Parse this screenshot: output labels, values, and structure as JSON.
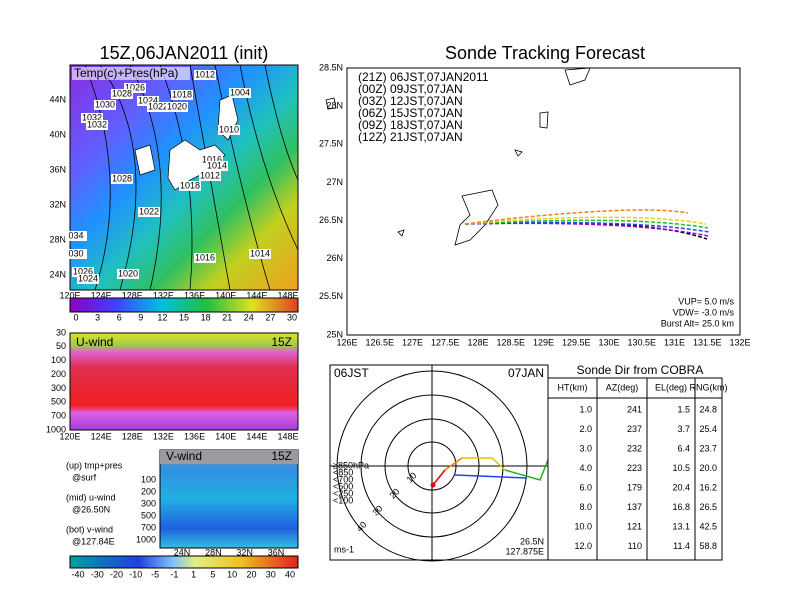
{
  "left": {
    "title": "15Z,06JAN2011 (init)",
    "subtitle": "Temp(c)+Pres(hPa)",
    "lat_ticks": [
      "44N",
      "40N",
      "36N",
      "32N",
      "28N",
      "24N"
    ],
    "lon_ticks": [
      "120E",
      "124E",
      "128E",
      "132E",
      "136E",
      "140E",
      "144E",
      "148E"
    ],
    "isobar_labels": [
      "1012",
      "1026",
      "1028",
      "1018",
      "1004",
      "1024",
      "1022",
      "1020",
      "1030",
      "1032",
      "1032",
      "1010",
      "1016",
      "1014",
      "1012",
      "1028",
      "1018",
      "1022",
      "1016",
      "1014",
      "1020",
      "1026",
      "1024",
      "034",
      "030"
    ],
    "temp_colorbar": [
      "0",
      "3",
      "6",
      "9",
      "12",
      "15",
      "18",
      "21",
      "24",
      "27",
      "30"
    ]
  },
  "uwind": {
    "label": "U-wind",
    "time": "15Z",
    "p_ticks": [
      "30",
      "50",
      "100",
      "200",
      "300",
      "500",
      "700",
      "1000"
    ],
    "lon_ticks": [
      "120E",
      "124E",
      "128E",
      "132E",
      "136E",
      "140E",
      "144E",
      "148E"
    ]
  },
  "vwind": {
    "label": "V-wind",
    "time": "15Z",
    "p_ticks": [
      "100",
      "200",
      "300",
      "500",
      "700",
      "1000"
    ],
    "lat_ticks": [
      "24N",
      "28N",
      "32N",
      "36N"
    ],
    "colorbar": [
      "-40",
      "-30",
      "-20",
      "-10",
      "-5",
      "-1",
      "1",
      "5",
      "10",
      "20",
      "30",
      "40"
    ]
  },
  "notes": [
    "(up) tmp+pres",
    "@surf",
    "(mid) u-wind",
    "@26.50N",
    "(bot) v-wind",
    "@127.84E"
  ],
  "track": {
    "title": "Sonde Tracking Forecast",
    "lat_ticks": [
      "28.5N",
      "28N",
      "27.5N",
      "27N",
      "26.5N",
      "26N",
      "25.5N",
      "25N"
    ],
    "lon_ticks": [
      "126E",
      "126.5E",
      "127E",
      "127.5E",
      "128E",
      "128.5E",
      "129E",
      "129.5E",
      "130E",
      "130.5E",
      "131E",
      "131.5E",
      "132E"
    ],
    "legend": [
      {
        "text": "(21Z) 06JST,07JAN2011",
        "color": "#000000"
      },
      {
        "text": "(00Z) 09JST,07JAN",
        "color": "#a000c8"
      },
      {
        "text": "(03Z) 12JST,07JAN",
        "color": "#2050e0"
      },
      {
        "text": "(06Z) 15JST,07JAN",
        "color": "#20c020"
      },
      {
        "text": "(09Z) 18JST,07JAN",
        "color": "#e8d020"
      },
      {
        "text": "(12Z) 21JST,07JAN",
        "color": "#f08020"
      }
    ],
    "footer": [
      "VUP= 5.0 m/s",
      "VDW= -3.0 m/s",
      "Burst Alt= 25.0 km"
    ]
  },
  "polar": {
    "time": "06JST",
    "date": "07JAN",
    "levels": [
      {
        "text": "≥850hPa",
        "color": "#e00000"
      },
      {
        "text": "<850",
        "color": "#f08000"
      },
      {
        "text": "<700",
        "color": "#e0c000"
      },
      {
        "text": "<500",
        "color": "#20b020"
      },
      {
        "text": "<250",
        "color": "#00b0e0"
      },
      {
        "text": "<100",
        "color": "#2040ff"
      }
    ],
    "rings": [
      "10",
      "20",
      "30",
      "40"
    ],
    "unit": "ms-1",
    "lat": "26.5N",
    "lon": "127.875E"
  },
  "table": {
    "title": "Sonde Dir from COBRA",
    "header": [
      "HT(km)",
      "AZ(deg)",
      "EL(deg)",
      "RNG(km)"
    ],
    "rows": [
      [
        "1.0",
        "241",
        "1.5",
        "24.8"
      ],
      [
        "2.0",
        "237",
        "3.7",
        "25.4"
      ],
      [
        "3.0",
        "232",
        "6.4",
        "23.7"
      ],
      [
        "4.0",
        "223",
        "10.5",
        "20.0"
      ],
      [
        "6.0",
        "179",
        "20.4",
        "16.2"
      ],
      [
        "8.0",
        "137",
        "16.8",
        "26.5"
      ],
      [
        "10.0",
        "121",
        "13.1",
        "42.5"
      ],
      [
        "12.0",
        "110",
        "11.4",
        "58.8"
      ]
    ]
  }
}
